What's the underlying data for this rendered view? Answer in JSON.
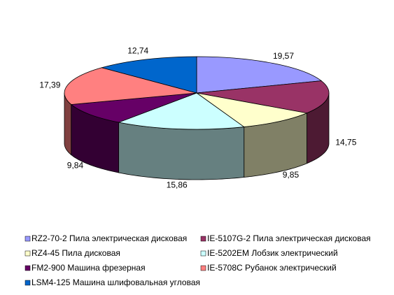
{
  "chart_data": {
    "type": "pie3d",
    "categories": [
      "RZ2-70-2 Пила электрическая дисковая",
      "IE-5107G-2 Пила электрическая дисковая",
      "RZ4-45 Пила дисковая",
      "IE-5202EM Лобзик электрический",
      "FM2-900 Машина фрезерная",
      "IE-5708C Рубанок электрический",
      "LSM4-125 Машина шлифовальная угловая"
    ],
    "values": [
      19.57,
      14.75,
      9.85,
      15.86,
      9.84,
      17.39,
      12.74
    ],
    "value_labels": [
      "19,57",
      "14,75",
      "9,85",
      "15,86",
      "9,84",
      "17,39",
      "12,74"
    ],
    "colors": [
      "#9999ff",
      "#993366",
      "#ffffcc",
      "#ccffff",
      "#660066",
      "#ff8080",
      "#0066cc"
    ],
    "legend": "bottom"
  }
}
